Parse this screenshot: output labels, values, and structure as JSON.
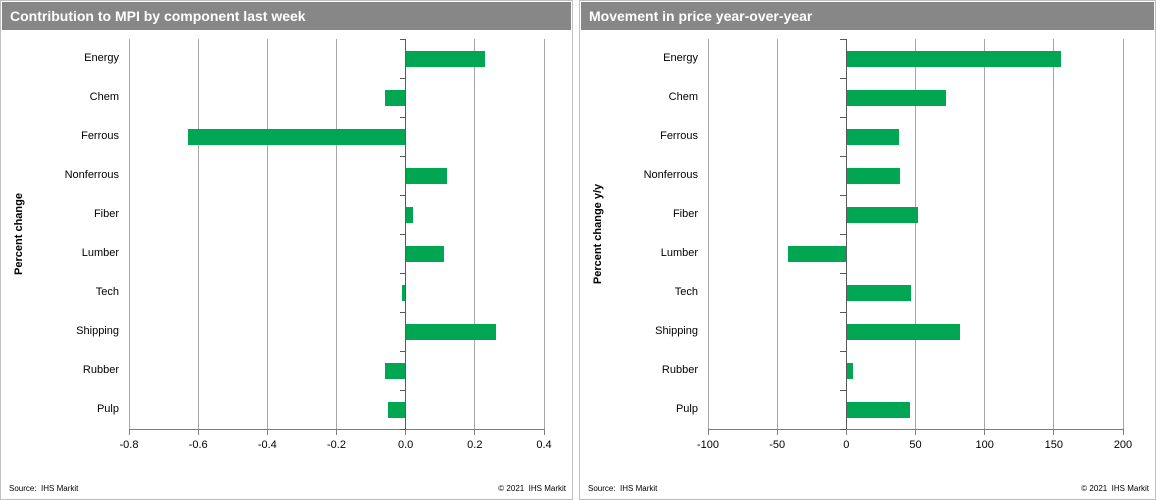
{
  "styles": {
    "bar_color": "#00a651",
    "title_bar_color": "#878787",
    "gridline_color": "#a6a6a6",
    "axis_color": "#595959",
    "panel_border_color": "#bfbfbf"
  },
  "chart_data": [
    {
      "type": "bar",
      "orientation": "horizontal",
      "title": "Contribution to MPI by component last week",
      "ylabel": "Percent change",
      "xlabel": "",
      "categories": [
        "Energy",
        "Chem",
        "Ferrous",
        "Nonferrous",
        "Fiber",
        "Lumber",
        "Tech",
        "Shipping",
        "Rubber",
        "Pulp"
      ],
      "values": [
        0.23,
        -0.06,
        -0.63,
        0.12,
        0.02,
        0.11,
        -0.01,
        0.26,
        -0.06,
        -0.05
      ],
      "xlim": [
        -0.8,
        0.4
      ],
      "xticks": [
        -0.8,
        -0.6,
        -0.4,
        -0.2,
        0,
        0.2,
        0.4
      ],
      "xtick_labels": [
        "-0.8",
        "-0.6",
        "-0.4",
        "-0.2",
        "0.0",
        "0.2",
        "0.4"
      ],
      "grid": true,
      "legend_position": "none",
      "source": "Source:  IHS Markit",
      "copyright": "© 2021  IHS Markit"
    },
    {
      "type": "bar",
      "orientation": "horizontal",
      "title": "Movement in price year-over-year",
      "ylabel": "Percent change y/y",
      "xlabel": "",
      "categories": [
        "Energy",
        "Chem",
        "Ferrous",
        "Nonferrous",
        "Fiber",
        "Lumber",
        "Tech",
        "Shipping",
        "Rubber",
        "Pulp"
      ],
      "values": [
        155,
        72,
        38,
        39,
        52,
        -42,
        47,
        82,
        5,
        46
      ],
      "xlim": [
        -100,
        200
      ],
      "xticks": [
        -100,
        -50,
        0,
        50,
        100,
        150,
        200
      ],
      "xtick_labels": [
        "-100",
        "-50",
        "0",
        "50",
        "100",
        "150",
        "200"
      ],
      "grid": true,
      "legend_position": "none",
      "source": "Source:  IHS Markit",
      "copyright": "© 2021  IHS Markit"
    }
  ]
}
